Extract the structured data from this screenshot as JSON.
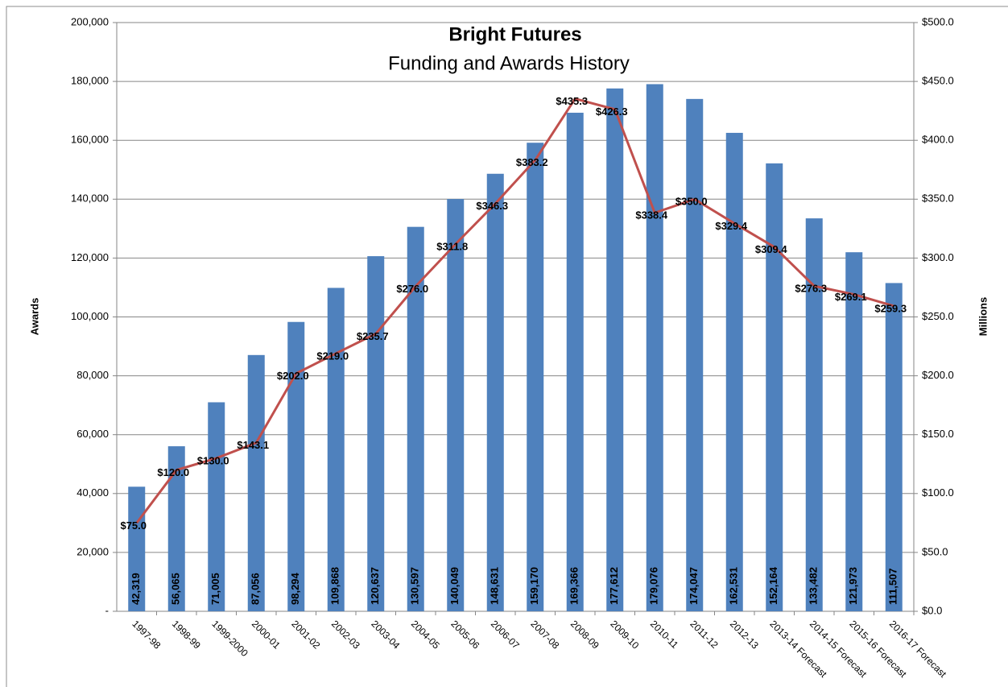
{
  "chart_data": {
    "type": "bar",
    "title": "Bright Futures",
    "subtitle": "Funding and Awards History",
    "y_label": "Awards",
    "y2_label": "Millions",
    "categories": [
      "1997-98",
      "1998-99",
      "1999-2000",
      "2000-01",
      "2001-02",
      "2002-03",
      "2003-04",
      "2004-05",
      "2005-06",
      "2006-07",
      "2007-08",
      "2008-09",
      "2009-10",
      "2010-11",
      "2011-12",
      "2012-13",
      "2013-14 Forecast",
      "2014-15 Forecast",
      "2015-16 Forecast",
      "2016-17 Forecast"
    ],
    "series": [
      {
        "type": "bar",
        "color": "#4f81bd",
        "values": [
          42319,
          56065,
          71005,
          87056,
          98294,
          109868,
          120637,
          130597,
          140049,
          148631,
          159170,
          169366,
          177612,
          179076,
          174047,
          162531,
          152164,
          133482,
          121973,
          111507
        ],
        "value_labels": [
          "42,319",
          "56,065",
          "71,005",
          "87,056",
          "98,294",
          "109,868",
          "120,637",
          "130,597",
          "140,049",
          "148,631",
          "159,170",
          "169,366",
          "177,612",
          "179,076",
          "174,047",
          "162,531",
          "152,164",
          "133,482",
          "121,973",
          "111,507"
        ]
      },
      {
        "type": "line",
        "axis": "y2",
        "color": "#c0504d",
        "values": [
          75.0,
          120.0,
          130.0,
          143.1,
          202.0,
          219.0,
          235.7,
          276.0,
          311.8,
          346.3,
          383.2,
          435.3,
          426.3,
          338.4,
          350.0,
          329.4,
          309.4,
          276.3,
          269.1,
          259.3
        ],
        "value_labels": [
          "$75.0",
          "$120.0",
          "$130.0",
          "$143.1",
          "$202.0",
          "$219.0",
          "$235.7",
          "$276.0",
          "$311.8",
          "$346.3",
          "$383.2",
          "$435.3",
          "$426.3",
          "$338.4",
          "$350.0",
          "$329.4",
          "$309.4",
          "$276.3",
          "$269.1",
          "$259.3"
        ]
      }
    ],
    "ylim": [
      0,
      200000
    ],
    "yticks": [
      {
        "value": 0,
        "label": "-"
      },
      {
        "value": 20000,
        "label": "20,000"
      },
      {
        "value": 40000,
        "label": "40,000"
      },
      {
        "value": 60000,
        "label": "60,000"
      },
      {
        "value": 80000,
        "label": "80,000"
      },
      {
        "value": 100000,
        "label": "100,000"
      },
      {
        "value": 120000,
        "label": "120,000"
      },
      {
        "value": 140000,
        "label": "140,000"
      },
      {
        "value": 160000,
        "label": "160,000"
      },
      {
        "value": 180000,
        "label": "180,000"
      },
      {
        "value": 200000,
        "label": "200,000"
      }
    ],
    "y2lim": [
      0,
      500
    ],
    "y2ticks": [
      {
        "value": 0,
        "label": "$0.0"
      },
      {
        "value": 50,
        "label": "$50.0"
      },
      {
        "value": 100,
        "label": "$100.0"
      },
      {
        "value": 150,
        "label": "$150.0"
      },
      {
        "value": 200,
        "label": "$200.0"
      },
      {
        "value": 250,
        "label": "$250.0"
      },
      {
        "value": 300,
        "label": "$300.0"
      },
      {
        "value": 350,
        "label": "$350.0"
      },
      {
        "value": 400,
        "label": "$400.0"
      },
      {
        "value": 450,
        "label": "$450.0"
      },
      {
        "value": 500,
        "label": "$500.0"
      }
    ],
    "grid": true
  }
}
